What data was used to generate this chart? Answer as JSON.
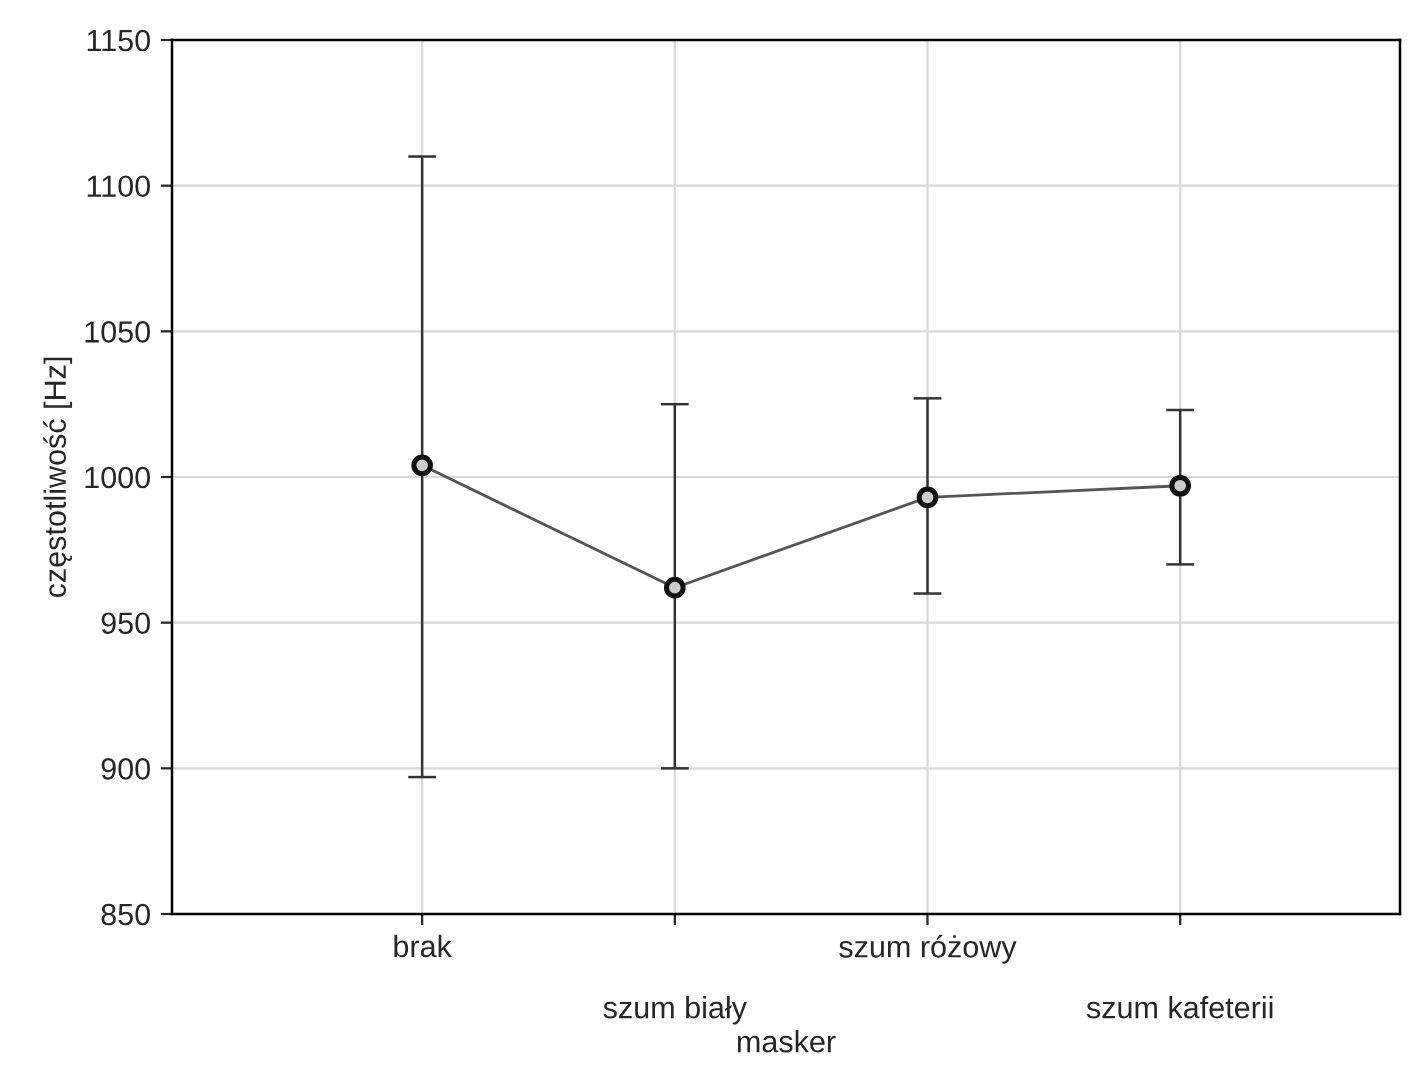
{
  "chart_data": {
    "type": "line",
    "xlabel": "masker",
    "ylabel": "częstotliwość [Hz]",
    "categories": [
      "brak",
      "szum biały",
      "szum różowy",
      "szum kafeterii"
    ],
    "values": [
      1004,
      962,
      993,
      997
    ],
    "errors": [
      [
        897,
        1110
      ],
      [
        900,
        1025
      ],
      [
        960,
        1027
      ],
      [
        970,
        1023
      ]
    ],
    "color": "#555555",
    "marker": "circle",
    "line_style": "solid",
    "grid": true,
    "ylim": [
      850,
      1150
    ],
    "yticks": [
      850,
      900,
      950,
      1000,
      1050,
      1100,
      1150
    ]
  }
}
